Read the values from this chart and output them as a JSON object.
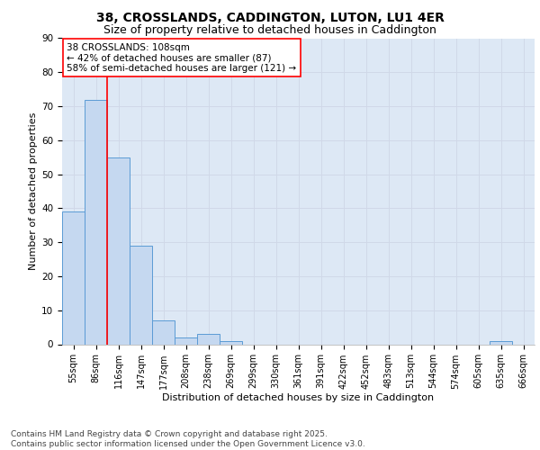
{
  "title_line1": "38, CROSSLANDS, CADDINGTON, LUTON, LU1 4ER",
  "title_line2": "Size of property relative to detached houses in Caddington",
  "xlabel": "Distribution of detached houses by size in Caddington",
  "ylabel": "Number of detached properties",
  "bar_labels": [
    "55sqm",
    "86sqm",
    "116sqm",
    "147sqm",
    "177sqm",
    "208sqm",
    "238sqm",
    "269sqm",
    "299sqm",
    "330sqm",
    "361sqm",
    "391sqm",
    "422sqm",
    "452sqm",
    "483sqm",
    "513sqm",
    "544sqm",
    "574sqm",
    "605sqm",
    "635sqm",
    "666sqm"
  ],
  "bar_values": [
    39,
    72,
    55,
    29,
    7,
    2,
    3,
    1,
    0,
    0,
    0,
    0,
    0,
    0,
    0,
    0,
    0,
    0,
    0,
    1,
    0
  ],
  "bar_color": "#c5d8f0",
  "bar_edge_color": "#5b9bd5",
  "grid_color": "#d0d8e8",
  "background_color": "#dde8f5",
  "annotation_line1": "38 CROSSLANDS: 108sqm",
  "annotation_line2": "← 42% of detached houses are smaller (87)",
  "annotation_line3": "58% of semi-detached houses are larger (121) →",
  "red_line_x": 1.5,
  "ylim": [
    0,
    90
  ],
  "yticks": [
    0,
    10,
    20,
    30,
    40,
    50,
    60,
    70,
    80,
    90
  ],
  "footer": "Contains HM Land Registry data © Crown copyright and database right 2025.\nContains public sector information licensed under the Open Government Licence v3.0.",
  "title_fontsize": 10,
  "subtitle_fontsize": 9,
  "axis_label_fontsize": 8,
  "tick_fontsize": 7,
  "annotation_fontsize": 7.5,
  "footer_fontsize": 6.5
}
